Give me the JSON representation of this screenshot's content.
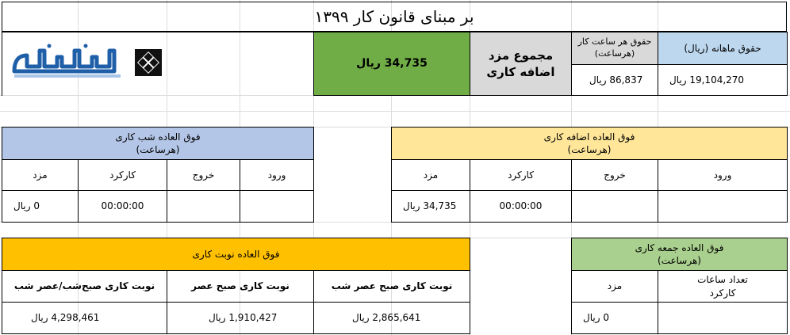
{
  "title": "بر مبنای قانون کار ۱۳۹۹",
  "summary": {
    "monthly_salary_label": "حقوق ماهانه (ریال)",
    "monthly_salary_value": "19,104,270",
    "hourly_wage_label": "حقوق هر ساعت کار\n(هرساعت)",
    "hourly_wage_value": "86,837",
    "total_overtime_label": "مجموع مزد\nاضافه کاری",
    "total_overtime_value": "34,735",
    "currency": "ریال"
  },
  "overtime": {
    "header": "فوق العاده اضافه کاری\n(هرساعت)",
    "entry_label": "ورود",
    "exit_label": "خروج",
    "worked_label": "کارکرد",
    "wage_label": "مزد",
    "entry_value": "",
    "exit_value": "",
    "worked_value": "00:00:00",
    "wage_value": "34,735"
  },
  "night_shift": {
    "header": "فوق العاده شب کاری\n(هرساعت)",
    "entry_label": "ورود",
    "exit_label": "خروج",
    "worked_label": "کارکرد",
    "wage_label": "مزد",
    "entry_value": "",
    "exit_value": "",
    "worked_value": "00:00:00",
    "wage_value": "0"
  },
  "friday_work": {
    "header": "فوق العاده جمعه کاری\n(هرساعت)",
    "hours_label": "تعداد ساعات\nکارکرد",
    "wage_label": "مزد",
    "hours_value": "",
    "wage_value": "0"
  },
  "rotation_shift": {
    "header": "فوق العاده نوبت کاری",
    "col1_label": "نوبت کاری صبح عصر شب",
    "col2_label": "نوبت کاری صبح عصر",
    "col3_label": "نوبت کاری صبح‌شب/عصر شب",
    "col1_value": "2,865,641",
    "col2_value": "1,910,427",
    "col3_value": "4,298,461"
  },
  "logo": {
    "icon": "diamond-logo-icon",
    "brand_color": "#1f5fa8"
  }
}
